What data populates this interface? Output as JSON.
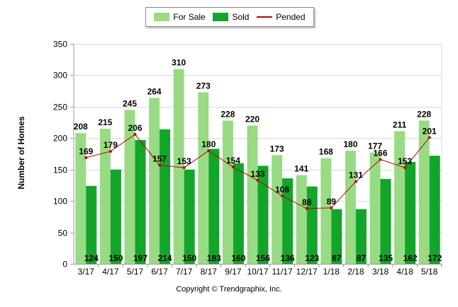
{
  "legend": {
    "for_sale": "For Sale",
    "sold": "Sold",
    "pended": "Pended"
  },
  "footer": {
    "copyright": "Copyright © Trendgraphix, Inc."
  },
  "colors": {
    "for_sale": "#98DB84",
    "sold": "#12A52A",
    "pended": "#C00000",
    "grid": "#D8D8D8"
  },
  "chart_data": {
    "type": "bar",
    "title": "",
    "xlabel": "",
    "ylabel": "Number of Homes",
    "ylim": [
      0,
      350
    ],
    "yticks": [
      0,
      50,
      100,
      150,
      200,
      250,
      300,
      350
    ],
    "grid": true,
    "legend_position": "top-center",
    "categories": [
      "3/17",
      "4/17",
      "5/17",
      "6/17",
      "7/17",
      "8/17",
      "9/17",
      "10/17",
      "11/17",
      "12/17",
      "1/18",
      "2/18",
      "3/18",
      "4/18",
      "5/18"
    ],
    "series": [
      {
        "name": "For Sale",
        "kind": "bar",
        "values": [
          208,
          215,
          245,
          264,
          310,
          273,
          228,
          220,
          173,
          141,
          168,
          180,
          177,
          211,
          228
        ]
      },
      {
        "name": "Sold",
        "kind": "bar",
        "values": [
          124,
          150,
          197,
          214,
          150,
          183,
          160,
          156,
          136,
          123,
          87,
          87,
          135,
          162,
          172
        ]
      },
      {
        "name": "Pended",
        "kind": "line",
        "values": [
          169,
          179,
          206,
          157,
          153,
          180,
          154,
          133,
          108,
          88,
          89,
          131,
          166,
          153,
          201
        ]
      }
    ]
  }
}
